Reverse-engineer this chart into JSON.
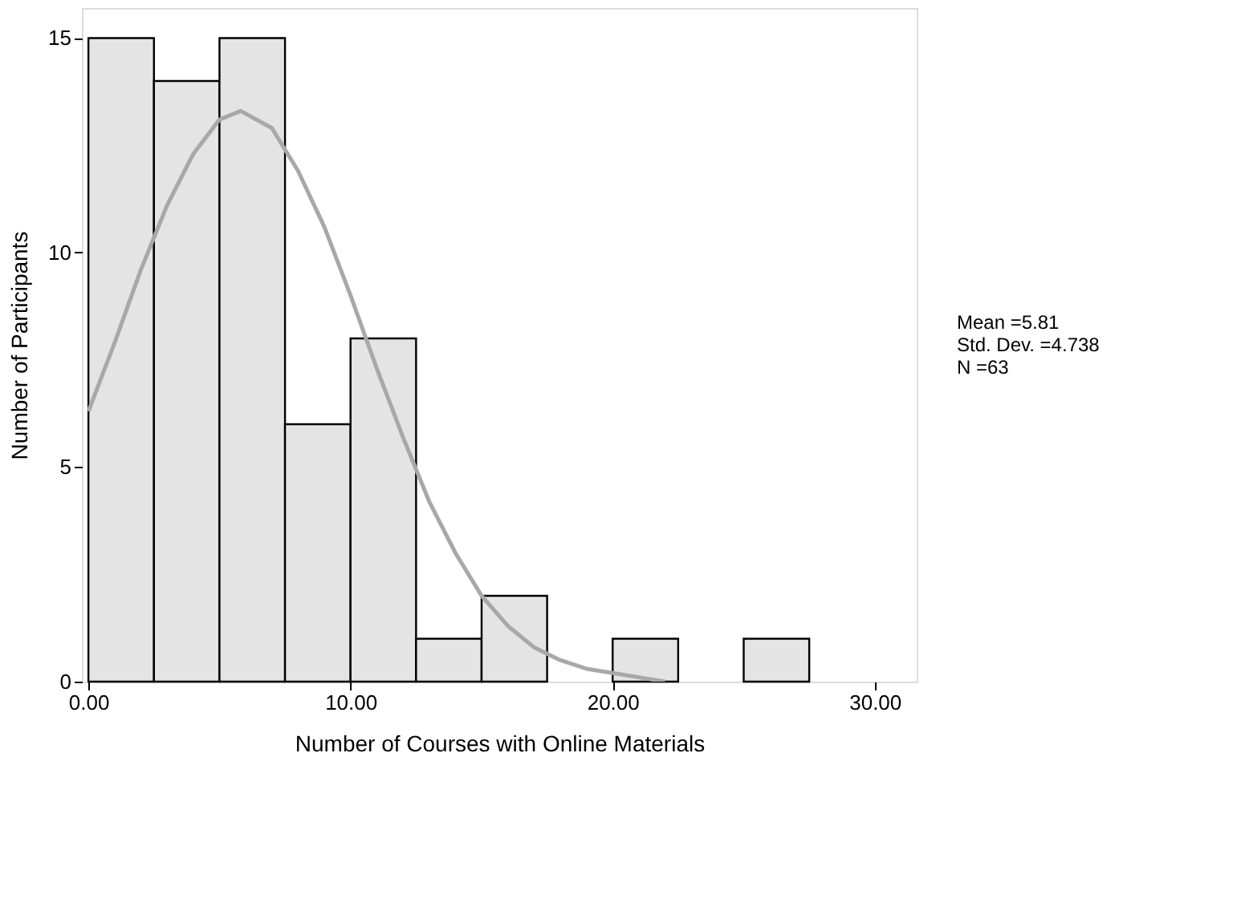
{
  "chart_data": {
    "type": "histogram",
    "xlabel": "Number of Courses with Online Materials",
    "ylabel": "Number of Participants",
    "bins": [
      0,
      2.5,
      5,
      7.5,
      10,
      12.5,
      15,
      17.5,
      20,
      22.5,
      25,
      27.5
    ],
    "values": [
      15,
      14,
      15,
      6,
      8,
      1,
      2,
      0,
      1,
      0,
      1
    ],
    "color": "#e4e4e4",
    "series": [
      {
        "type": "line",
        "color": "#a8a8a8",
        "x": [
          0,
          1,
          2,
          3,
          4,
          5,
          5.81,
          7,
          8,
          9,
          10,
          11,
          12,
          13,
          14,
          15,
          16,
          17,
          18,
          19,
          20,
          21,
          22
        ],
        "values": [
          6.3,
          7.9,
          9.6,
          11.1,
          12.3,
          13.1,
          13.3,
          12.9,
          11.9,
          10.6,
          9.0,
          7.3,
          5.7,
          4.2,
          3.0,
          2.0,
          1.3,
          0.8,
          0.5,
          0.3,
          0.2,
          0.1,
          0.0
        ]
      }
    ],
    "xlim": [
      -0.25,
      31.6
    ],
    "ylim": [
      0,
      15.7
    ],
    "xticks": [
      {
        "value": 0,
        "label": "0.00"
      },
      {
        "value": 10,
        "label": "10.00"
      },
      {
        "value": 20,
        "label": "20.00"
      },
      {
        "value": 30,
        "label": "30.00"
      }
    ],
    "yticks": [
      0,
      5,
      10,
      15
    ],
    "grid": false,
    "annotations": [
      "Mean =5.81",
      "Std. Dev. =4.738",
      "N =63"
    ]
  }
}
